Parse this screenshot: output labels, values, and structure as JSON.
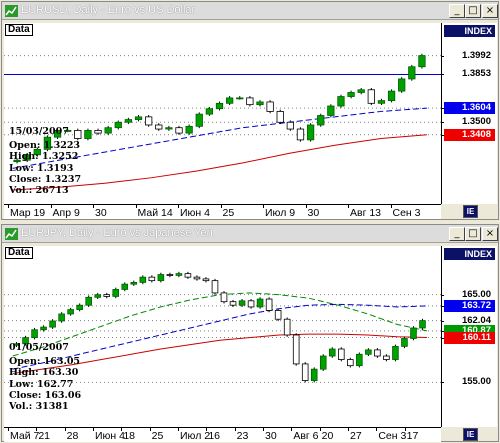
{
  "windows": [
    {
      "title": "EURUSD, Daily - Euro vs US Dollar",
      "data_label": "Data",
      "index_label": "INDEX",
      "info": {
        "date": "15/03/2007",
        "open": "Open: 1.3223",
        "high": "High: 1.3252",
        "low": "Low: 1.3193",
        "close": "Close: 1.3237",
        "vol": "Vol.: 26713"
      },
      "price_tags": [
        {
          "text": "1.3992",
          "bg": "#ffffff",
          "fg": "#000000",
          "value": 1.3992
        },
        {
          "text": "1.3853",
          "bg": "#ffffff",
          "fg": "#000000",
          "value": 1.3853
        },
        {
          "text": "1.3604",
          "bg": "#0000ee",
          "fg": "#ffffff",
          "value": 1.3604
        },
        {
          "text": "1.3500",
          "bg": "#ffffff",
          "fg": "#000000",
          "value": 1.35
        },
        {
          "text": "1.3408",
          "bg": "#ee0000",
          "fg": "#ffffff",
          "value": 1.3408
        }
      ],
      "x_labels": [
        "Мар 19",
        "Апр 9",
        "30",
        "Май 14",
        "Июн 4",
        "25",
        "Июл 9",
        "30",
        "Авг 13",
        "Сен 3"
      ],
      "corner_label": "IE",
      "chart_data": {
        "type": "candlestick",
        "horizontal_line": 1.3853,
        "ylim": [
          1.3,
          1.41
        ],
        "ma_blue_dashed": [
          1.316,
          1.322,
          1.328,
          1.334,
          1.34,
          1.346,
          1.35,
          1.354,
          1.358,
          1.3604
        ],
        "ma_red": [
          1.3,
          1.302,
          1.305,
          1.309,
          1.314,
          1.32,
          1.327,
          1.333,
          1.338,
          1.3408
        ],
        "closes": [
          1.322,
          1.326,
          1.33,
          1.339,
          1.344,
          1.344,
          1.338,
          1.344,
          1.342,
          1.346,
          1.35,
          1.352,
          1.354,
          1.348,
          1.345,
          1.346,
          1.342,
          1.347,
          1.356,
          1.36,
          1.364,
          1.368,
          1.368,
          1.363,
          1.365,
          1.358,
          1.35,
          1.345,
          1.337,
          1.348,
          1.355,
          1.362,
          1.369,
          1.372,
          1.374,
          1.364,
          1.366,
          1.373,
          1.382,
          1.391,
          1.3992
        ]
      }
    },
    {
      "title": "EURJPY, Daily - Euro vs Japanese Yen",
      "data_label": "Data",
      "index_label": "INDEX",
      "info": {
        "date": "01/05/2007",
        "open": "Open: 163.05",
        "high": "High: 163.30",
        "low": "Low: 162.77",
        "close": "Close: 163.06",
        "vol": "Vol.: 31381"
      },
      "price_tags": [
        {
          "text": "165.00",
          "bg": "#ffffff",
          "fg": "#000000",
          "value": 165.0
        },
        {
          "text": "163.72",
          "bg": "#0000ee",
          "fg": "#ffffff",
          "value": 163.72
        },
        {
          "text": "162.04",
          "bg": "#ffffff",
          "fg": "#000000",
          "value": 162.04
        },
        {
          "text": "160.87",
          "bg": "#009900",
          "fg": "#ffffff",
          "value": 160.87
        },
        {
          "text": "160.11",
          "bg": "#ee0000",
          "fg": "#ffffff",
          "value": 160.11
        },
        {
          "text": "155.00",
          "bg": "#ffffff",
          "fg": "#000000",
          "value": 155.0
        }
      ],
      "x_labels": [
        "Май 7",
        "21",
        "28",
        "Июн 4",
        "18",
        "25",
        "Июл 2",
        "16",
        "23",
        "30",
        "Авг 6",
        "20",
        "27",
        "Сен 3",
        "17"
      ],
      "corner_label": "IE",
      "chart_data": {
        "type": "candlestick",
        "ylim": [
          151.5,
          168.5
        ],
        "ma_blue_dashed": [
          156.5,
          157.2,
          158.0,
          158.8,
          159.6,
          160.4,
          161.2,
          162.0,
          162.8,
          163.4,
          163.8,
          163.9,
          163.8,
          163.6,
          163.72
        ],
        "ma_green_dashed": [
          158.0,
          159.0,
          160.2,
          161.4,
          162.6,
          163.6,
          164.4,
          165.0,
          165.2,
          165.0,
          164.6,
          163.8,
          162.8,
          161.6,
          160.87
        ],
        "ma_red": [
          156.0,
          156.5,
          157.0,
          157.6,
          158.2,
          158.8,
          159.3,
          159.8,
          160.1,
          160.4,
          160.5,
          160.5,
          160.4,
          160.2,
          160.11
        ],
        "closes": [
          159.4,
          160.1,
          161.0,
          161.3,
          162.0,
          162.8,
          163.3,
          163.8,
          164.7,
          165.0,
          164.8,
          165.6,
          166.2,
          166.4,
          167.0,
          166.6,
          167.3,
          167.2,
          167.4,
          167.0,
          166.8,
          166.6,
          165.2,
          164.2,
          163.8,
          164.3,
          163.6,
          164.5,
          163.2,
          162.2,
          160.4,
          157.1,
          155.2,
          156.5,
          158.0,
          158.8,
          157.6,
          156.9,
          158.2,
          158.7,
          158.0,
          157.6,
          159.1,
          160.0,
          161.2,
          162.04
        ]
      }
    }
  ]
}
